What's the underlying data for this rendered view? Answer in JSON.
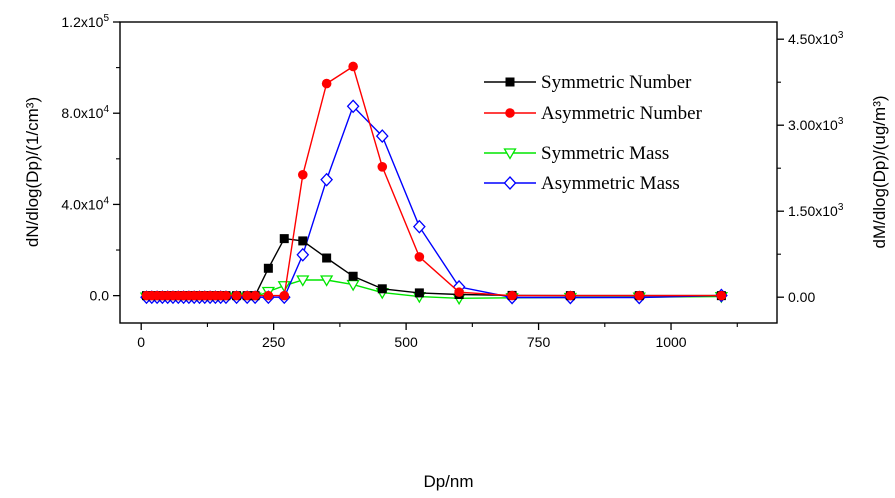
{
  "chart_data": {
    "type": "line",
    "xlabel": "Dp/nm",
    "ylabel_left": "dN/dlog(Dp)/(1/cm³)",
    "ylabel_right": "dM/dlog(Dp)/(ug/m³)",
    "xlim": [
      -40,
      1200
    ],
    "xticks": [
      0,
      250,
      500,
      750,
      1000
    ],
    "xtick_labels": [
      "0",
      "250",
      "500",
      "750",
      "1000"
    ],
    "ylim_left": [
      -12000,
      120000
    ],
    "yticks_left": [
      0,
      40000,
      80000,
      120000
    ],
    "ytick_labels_left": [
      {
        "base": "0.0",
        "exp": ""
      },
      {
        "base": "4.0x10",
        "exp": "4"
      },
      {
        "base": "8.0x10",
        "exp": "4"
      },
      {
        "base": "1.2x10",
        "exp": "5"
      }
    ],
    "ylim_right": [
      -450,
      4800
    ],
    "yticks_right": [
      0,
      1500,
      3000,
      4500
    ],
    "ytick_labels_right": [
      {
        "base": "0.00",
        "exp": ""
      },
      {
        "base": "1.50x10",
        "exp": "3"
      },
      {
        "base": "3.00x10",
        "exp": "3"
      },
      {
        "base": "4.50x10",
        "exp": "3"
      }
    ],
    "legend_position": "top-right",
    "series": [
      {
        "name": "Symmetric Number",
        "axis": "left",
        "color": "#000000",
        "marker": "filled-square",
        "x": [
          10,
          20,
          30,
          40,
          50,
          60,
          70,
          80,
          90,
          100,
          110,
          120,
          130,
          140,
          150,
          160,
          180,
          200,
          215,
          240,
          270,
          305,
          350,
          400,
          455,
          525,
          600,
          700,
          810,
          940,
          1095
        ],
        "y": [
          0,
          0,
          0,
          0,
          0,
          0,
          0,
          0,
          0,
          0,
          0,
          0,
          0,
          0,
          0,
          0,
          0,
          0,
          0,
          12000,
          25000,
          24000,
          16500,
          8500,
          3000,
          1200,
          500,
          100,
          0,
          0,
          0
        ]
      },
      {
        "name": "Asymmetric Number",
        "axis": "left",
        "color": "#ff0000",
        "marker": "filled-circle",
        "x": [
          10,
          20,
          30,
          40,
          50,
          60,
          70,
          80,
          90,
          100,
          110,
          120,
          130,
          140,
          150,
          160,
          180,
          200,
          215,
          240,
          270,
          305,
          350,
          400,
          455,
          525,
          600,
          700,
          810,
          940,
          1095
        ],
        "y": [
          0,
          0,
          0,
          0,
          0,
          0,
          0,
          0,
          0,
          0,
          0,
          0,
          0,
          0,
          0,
          0,
          0,
          0,
          0,
          0,
          0,
          53000,
          93000,
          100500,
          56500,
          17000,
          1500,
          0,
          0,
          0,
          0
        ]
      },
      {
        "name": "Symmetric Mass",
        "axis": "right",
        "color": "#00e600",
        "marker": "open-triangle-down",
        "x": [
          10,
          20,
          30,
          40,
          50,
          60,
          70,
          80,
          90,
          100,
          110,
          120,
          130,
          140,
          150,
          160,
          180,
          200,
          215,
          240,
          270,
          305,
          350,
          400,
          455,
          525,
          600,
          700,
          810,
          940,
          1095
        ],
        "y": [
          0,
          0,
          0,
          0,
          0,
          0,
          0,
          0,
          0,
          0,
          0,
          0,
          0,
          0,
          0,
          0,
          0,
          0,
          0,
          100,
          200,
          300,
          300,
          220,
          80,
          10,
          -20,
          -10,
          -5,
          0,
          10
        ]
      },
      {
        "name": "Asymmetric Mass",
        "axis": "right",
        "color": "#0000ff",
        "marker": "open-diamond",
        "x": [
          10,
          20,
          30,
          40,
          50,
          60,
          70,
          80,
          90,
          100,
          110,
          120,
          130,
          140,
          150,
          160,
          180,
          200,
          215,
          240,
          270,
          305,
          350,
          400,
          455,
          525,
          600,
          700,
          810,
          940,
          1095
        ],
        "y": [
          0,
          0,
          0,
          0,
          0,
          0,
          0,
          0,
          0,
          0,
          0,
          0,
          0,
          0,
          0,
          0,
          0,
          0,
          0,
          0,
          0,
          740,
          2050,
          3330,
          2810,
          1230,
          180,
          -5,
          -5,
          -5,
          30
        ]
      }
    ]
  }
}
